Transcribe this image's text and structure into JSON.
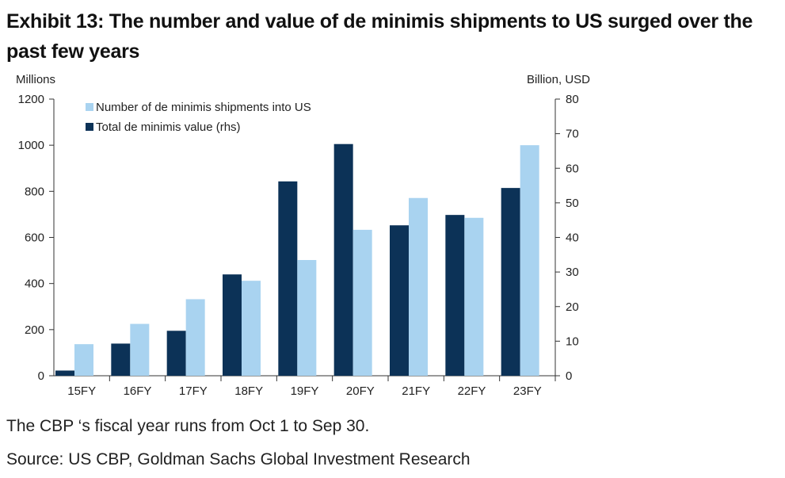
{
  "title": "Exhibit 13: The number and value of de minimis shipments to US surged over the past few years",
  "note": "The CBP ‘s fiscal year runs from Oct 1 to Sep 30.",
  "source": "Source: US CBP, Goldman Sachs Global Investment Research",
  "colors": {
    "shipments": "#a9d3f0",
    "value": "#0c3257",
    "axis": "#333333"
  },
  "chart_data": {
    "type": "bar",
    "categories": [
      "15FY",
      "16FY",
      "17FY",
      "18FY",
      "19FY",
      "20FY",
      "21FY",
      "22FY",
      "23FY"
    ],
    "series": [
      {
        "name": "Total de minimis value (rhs)",
        "axis": "right",
        "values": [
          1.5,
          9.3,
          13,
          29.3,
          56.2,
          67,
          43.5,
          46.5,
          54.3
        ]
      },
      {
        "name": "Number of de minimis shipments into US",
        "axis": "left",
        "values": [
          137,
          225,
          332,
          412,
          502,
          633,
          771,
          685,
          1000
        ]
      }
    ],
    "y_left": {
      "label": "Millions",
      "ylim": [
        0,
        1200
      ],
      "ticks": [
        0,
        200,
        400,
        600,
        800,
        1000,
        1200
      ]
    },
    "y_right": {
      "label": "Billion, USD",
      "ylim": [
        0,
        80
      ],
      "ticks": [
        0,
        10,
        20,
        30,
        40,
        50,
        60,
        70,
        80
      ]
    },
    "legend": [
      "Number of de minimis shipments into US",
      "Total de minimis value (rhs)"
    ],
    "legend_position": "top-left"
  }
}
